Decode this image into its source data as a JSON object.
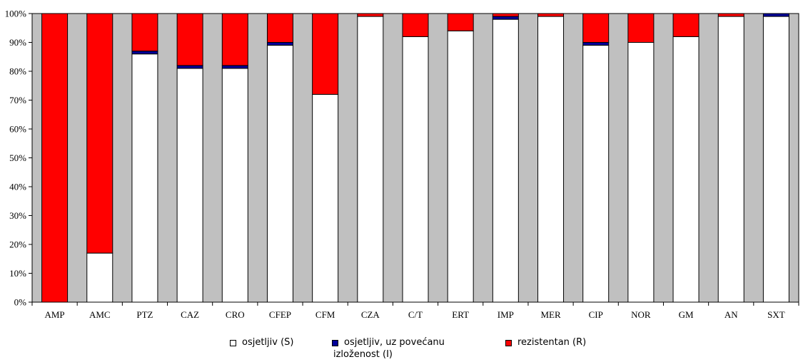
{
  "chart_data": {
    "type": "bar",
    "stacked": true,
    "categories": [
      "AMP",
      "AMC",
      "PTZ",
      "CAZ",
      "CRO",
      "CFEP",
      "CFM",
      "CZA",
      "C/T",
      "ERT",
      "IMP",
      "MER",
      "CIP",
      "NOR",
      "GM",
      "AN",
      "SXT"
    ],
    "series": [
      {
        "name": "osjetljiv (S)",
        "color": "#ffffff",
        "values": [
          0,
          17,
          86,
          81,
          81,
          89,
          72,
          99,
          92,
          94,
          98,
          99,
          89,
          90,
          92,
          99,
          99
        ]
      },
      {
        "name": "osjetljiv, uz povećanu izloženost (I)",
        "color": "#000099",
        "values": [
          0,
          0,
          1,
          1,
          1,
          1,
          0,
          0,
          0,
          0,
          1,
          0,
          1,
          0,
          0,
          0,
          1
        ]
      },
      {
        "name": "rezistentan (R)",
        "color": "#ff0000",
        "values": [
          100,
          83,
          13,
          18,
          18,
          10,
          28,
          1,
          8,
          6,
          1,
          1,
          10,
          10,
          8,
          1,
          0
        ]
      }
    ],
    "y_ticks": [
      "0%",
      "10%",
      "20%",
      "30%",
      "40%",
      "50%",
      "60%",
      "70%",
      "80%",
      "90%",
      "100%"
    ],
    "ylim": [
      0,
      100
    ],
    "grid": false,
    "plot_background": "#c0c0c0",
    "legend_position": "bottom"
  },
  "legend": {
    "s_label": "osjetljiv (S)",
    "i_label_line1": "osjetljiv, uz povećanu",
    "i_label_line2": "izloženost (I)",
    "r_label": "rezistentan (R)"
  }
}
